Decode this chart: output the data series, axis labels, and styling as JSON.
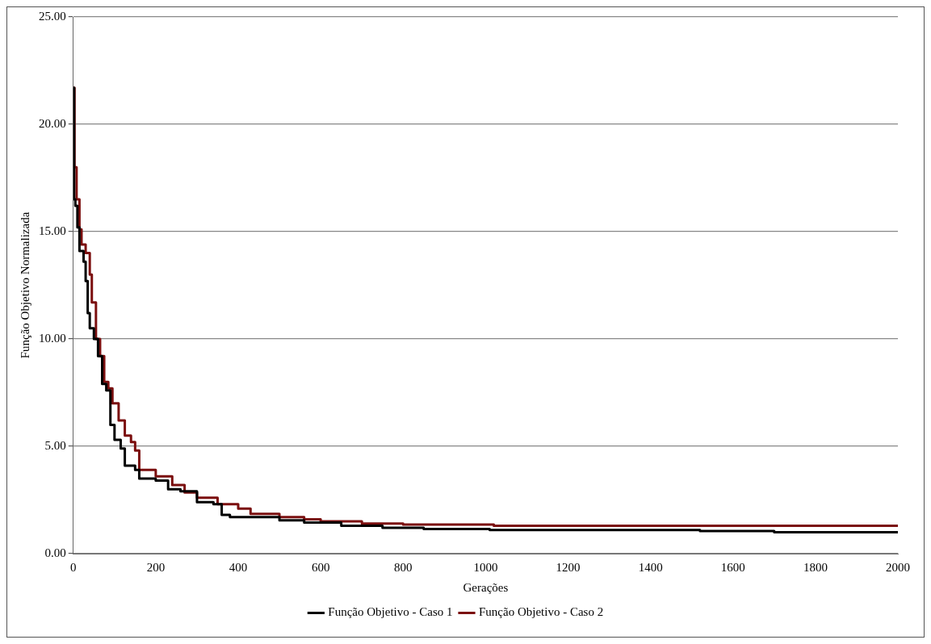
{
  "chart_data": {
    "type": "step",
    "xlabel": "Gerações",
    "ylabel": "Função Objetivo Normalizada",
    "xlim": [
      0,
      2000
    ],
    "xticks": [
      0,
      200,
      400,
      600,
      800,
      1000,
      1200,
      1400,
      1600,
      1800,
      2000
    ],
    "ylim": [
      0,
      25
    ],
    "yticks": [
      {
        "value": 0,
        "label": "0.00"
      },
      {
        "value": 5,
        "label": "5.00"
      },
      {
        "value": 10,
        "label": "10.00"
      },
      {
        "value": 15,
        "label": "15.00"
      },
      {
        "value": 20,
        "label": "20.00"
      },
      {
        "value": 25,
        "label": "25.00"
      }
    ],
    "grid": "y",
    "legend": "bottom",
    "marker": "none",
    "line_style": "solid",
    "series": [
      {
        "name": "Função Objetivo - Caso 1",
        "color": "#000000",
        "x": [
          0,
          2,
          5,
          10,
          15,
          25,
          30,
          35,
          40,
          50,
          60,
          70,
          80,
          90,
          100,
          115,
          125,
          150,
          160,
          200,
          230,
          260,
          300,
          340,
          360,
          380,
          500,
          560,
          650,
          750,
          850,
          1010,
          1520,
          1700,
          2000
        ],
        "values": [
          21.7,
          16.5,
          16.2,
          15.2,
          14.1,
          13.6,
          12.7,
          11.2,
          10.5,
          10.0,
          9.2,
          7.9,
          7.6,
          6.0,
          5.3,
          4.9,
          4.1,
          3.9,
          3.5,
          3.4,
          3.0,
          2.9,
          2.4,
          2.3,
          1.8,
          1.7,
          1.55,
          1.45,
          1.3,
          1.2,
          1.15,
          1.1,
          1.05,
          1.0,
          1.0
        ]
      },
      {
        "name": "Função Objetivo - Caso 2",
        "color": "#7b0f0f",
        "x": [
          0,
          3,
          8,
          15,
          20,
          30,
          40,
          45,
          55,
          65,
          75,
          85,
          95,
          110,
          125,
          140,
          150,
          160,
          200,
          240,
          270,
          300,
          350,
          400,
          430,
          500,
          560,
          600,
          700,
          800,
          1020,
          2000
        ],
        "values": [
          21.7,
          18,
          16.5,
          15.1,
          14.4,
          14.0,
          13.0,
          11.7,
          10.0,
          9.2,
          8.0,
          7.7,
          7.0,
          6.2,
          5.5,
          5.2,
          4.8,
          3.9,
          3.6,
          3.2,
          2.85,
          2.6,
          2.3,
          2.1,
          1.85,
          1.7,
          1.6,
          1.5,
          1.4,
          1.35,
          1.3,
          1.3
        ]
      }
    ]
  }
}
